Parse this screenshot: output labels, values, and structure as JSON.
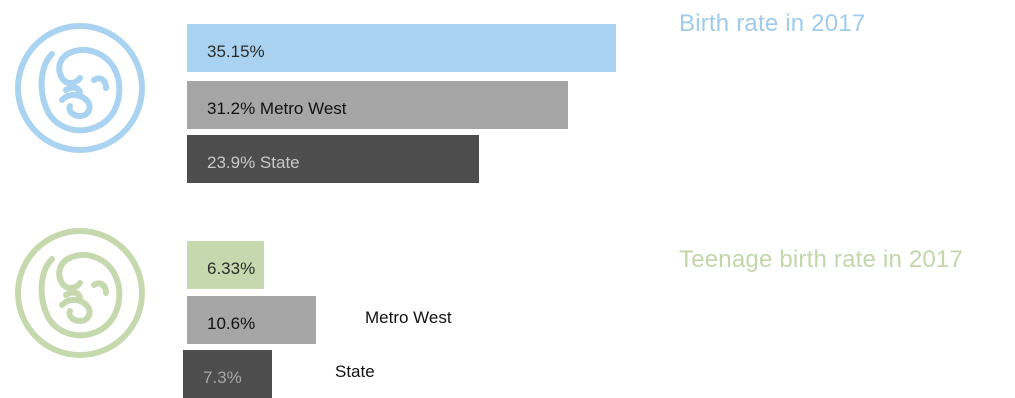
{
  "chart_data": [
    {
      "type": "bar",
      "title": "Birth rate in 2017",
      "orientation": "horizontal",
      "xlim": [
        0,
        35.15
      ],
      "bars": [
        {
          "value": 35.15,
          "label": "35.15%",
          "color": "#a9d3f0",
          "text_color": "#2b2b2b",
          "outside_label": ""
        },
        {
          "value": 31.2,
          "label": "31.2% Metro West",
          "color": "#a6a6a6",
          "text_color": "#111111",
          "outside_label": ""
        },
        {
          "value": 23.9,
          "label": "23.9% State",
          "color": "#4d4d4d",
          "text_color": "#c8c8c8",
          "outside_label": ""
        }
      ],
      "title_color": "#9fcbec",
      "icon": "fetus-icon",
      "icon_color": "#a9d3f0"
    },
    {
      "type": "bar",
      "title": "Teenage birth rate in 2017",
      "orientation": "horizontal",
      "xlim": [
        0,
        35.15
      ],
      "bars": [
        {
          "value": 6.33,
          "label": "6.33%",
          "color": "#c6d9ae",
          "text_color": "#2b2b2b",
          "outside_label": ""
        },
        {
          "value": 10.6,
          "label": "10.6%",
          "color": "#a6a6a6",
          "text_color": "#111111",
          "outside_label": "Metro West"
        },
        {
          "value": 7.3,
          "label": "7.3%",
          "color": "#4d4d4d",
          "text_color": "#a6a6a6",
          "outside_label": "State"
        }
      ],
      "title_color": "#c3d6aa",
      "icon": "fetus-icon",
      "icon_color": "#c6d9ae"
    }
  ]
}
